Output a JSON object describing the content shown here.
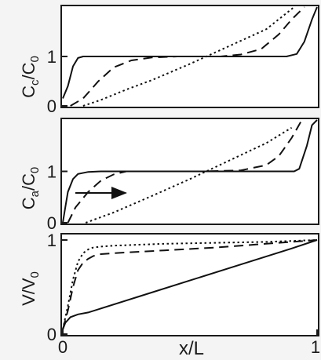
{
  "chart_data": [
    {
      "type": "line",
      "ylabel_main": "C",
      "ylabel_sub": "c",
      "ylabel_tail": "/C",
      "ylabel_sub2": "0",
      "xlim": [
        0,
        1
      ],
      "ylim": [
        0,
        2
      ],
      "yticks": [
        "0",
        "1"
      ],
      "grid": false,
      "series": [
        {
          "style": "solid",
          "x": [
            0,
            0.02,
            0.04,
            0.06,
            0.08,
            0.12,
            0.2,
            0.5,
            0.8,
            0.88,
            0.92,
            0.95,
            0.98,
            1.0
          ],
          "y": [
            0.15,
            0.4,
            0.8,
            0.97,
            1.0,
            1.0,
            1.0,
            1.0,
            1.0,
            1.0,
            1.05,
            1.3,
            1.75,
            2.0
          ]
        },
        {
          "style": "dashed",
          "x": [
            0.03,
            0.08,
            0.14,
            0.2,
            0.27,
            0.35,
            0.45,
            0.55,
            0.62,
            0.7,
            0.78,
            0.85,
            0.9,
            0.95
          ],
          "y": [
            0.0,
            0.15,
            0.5,
            0.78,
            0.92,
            0.98,
            1.0,
            1.0,
            1.0,
            1.04,
            1.15,
            1.45,
            1.75,
            2.0
          ]
        },
        {
          "style": "dotted",
          "x": [
            0.08,
            0.15,
            0.25,
            0.35,
            0.5,
            0.65,
            0.8,
            0.91
          ],
          "y": [
            0.0,
            0.12,
            0.33,
            0.52,
            0.85,
            1.2,
            1.55,
            2.0
          ]
        }
      ]
    },
    {
      "type": "line",
      "ylabel_main": "C",
      "ylabel_sub": "a",
      "ylabel_tail": "/C",
      "ylabel_sub2": "0",
      "xlim": [
        0,
        1
      ],
      "ylim": [
        0,
        2
      ],
      "yticks": [
        "0",
        "1"
      ],
      "grid": false,
      "annotation": "arrow pointing right",
      "series": [
        {
          "style": "solid",
          "x": [
            0,
            0.01,
            0.02,
            0.04,
            0.06,
            0.1,
            0.15,
            0.2,
            0.5,
            0.85,
            0.91,
            0.93,
            0.96,
            0.98,
            1.0
          ],
          "y": [
            0.0,
            0.3,
            0.6,
            0.85,
            0.95,
            0.99,
            1.0,
            1.0,
            1.0,
            1.0,
            1.0,
            1.05,
            1.5,
            1.9,
            2.0
          ]
        },
        {
          "style": "dashed",
          "x": [
            0.02,
            0.05,
            0.1,
            0.15,
            0.2,
            0.25,
            0.35,
            0.55,
            0.7,
            0.8,
            0.85,
            0.9,
            0.94
          ],
          "y": [
            0.0,
            0.3,
            0.6,
            0.82,
            0.94,
            1.0,
            1.0,
            1.0,
            1.02,
            1.12,
            1.3,
            1.65,
            2.0
          ]
        },
        {
          "style": "dotted",
          "x": [
            0.09,
            0.2,
            0.35,
            0.5,
            0.65,
            0.8,
            0.9
          ],
          "y": [
            0.0,
            0.2,
            0.52,
            0.85,
            1.2,
            1.55,
            1.85
          ]
        }
      ]
    },
    {
      "type": "line",
      "ylabel_main": "V/V",
      "ylabel_sub": "0",
      "ylabel_tail": "",
      "ylabel_sub2": "",
      "xlabel": "x/L",
      "xticks": [
        "0",
        "1"
      ],
      "xlim": [
        0,
        1
      ],
      "ylim": [
        0,
        1.05
      ],
      "yticks": [
        "0",
        "1"
      ],
      "grid": false,
      "series": [
        {
          "style": "solid",
          "x": [
            0,
            0.01,
            0.03,
            0.06,
            0.1,
            0.3,
            0.5,
            0.7,
            0.9,
            1.0
          ],
          "y": [
            0.05,
            0.12,
            0.18,
            0.21,
            0.23,
            0.4,
            0.57,
            0.74,
            0.91,
            1.0
          ]
        },
        {
          "style": "dashed",
          "x": [
            0,
            0.02,
            0.04,
            0.06,
            0.08,
            0.1,
            0.12,
            0.15,
            0.2,
            0.4,
            0.6,
            0.8,
            1.0
          ],
          "y": [
            0.05,
            0.25,
            0.5,
            0.68,
            0.76,
            0.8,
            0.83,
            0.85,
            0.86,
            0.89,
            0.92,
            0.96,
            1.0
          ]
        },
        {
          "style": "dotted",
          "x": [
            0,
            0.02,
            0.04,
            0.06,
            0.08,
            0.1,
            0.12,
            0.15,
            0.2,
            0.4,
            0.6,
            0.8,
            1.0
          ],
          "y": [
            0.05,
            0.3,
            0.58,
            0.77,
            0.86,
            0.9,
            0.92,
            0.93,
            0.94,
            0.96,
            0.97,
            0.98,
            1.0
          ]
        }
      ]
    }
  ]
}
